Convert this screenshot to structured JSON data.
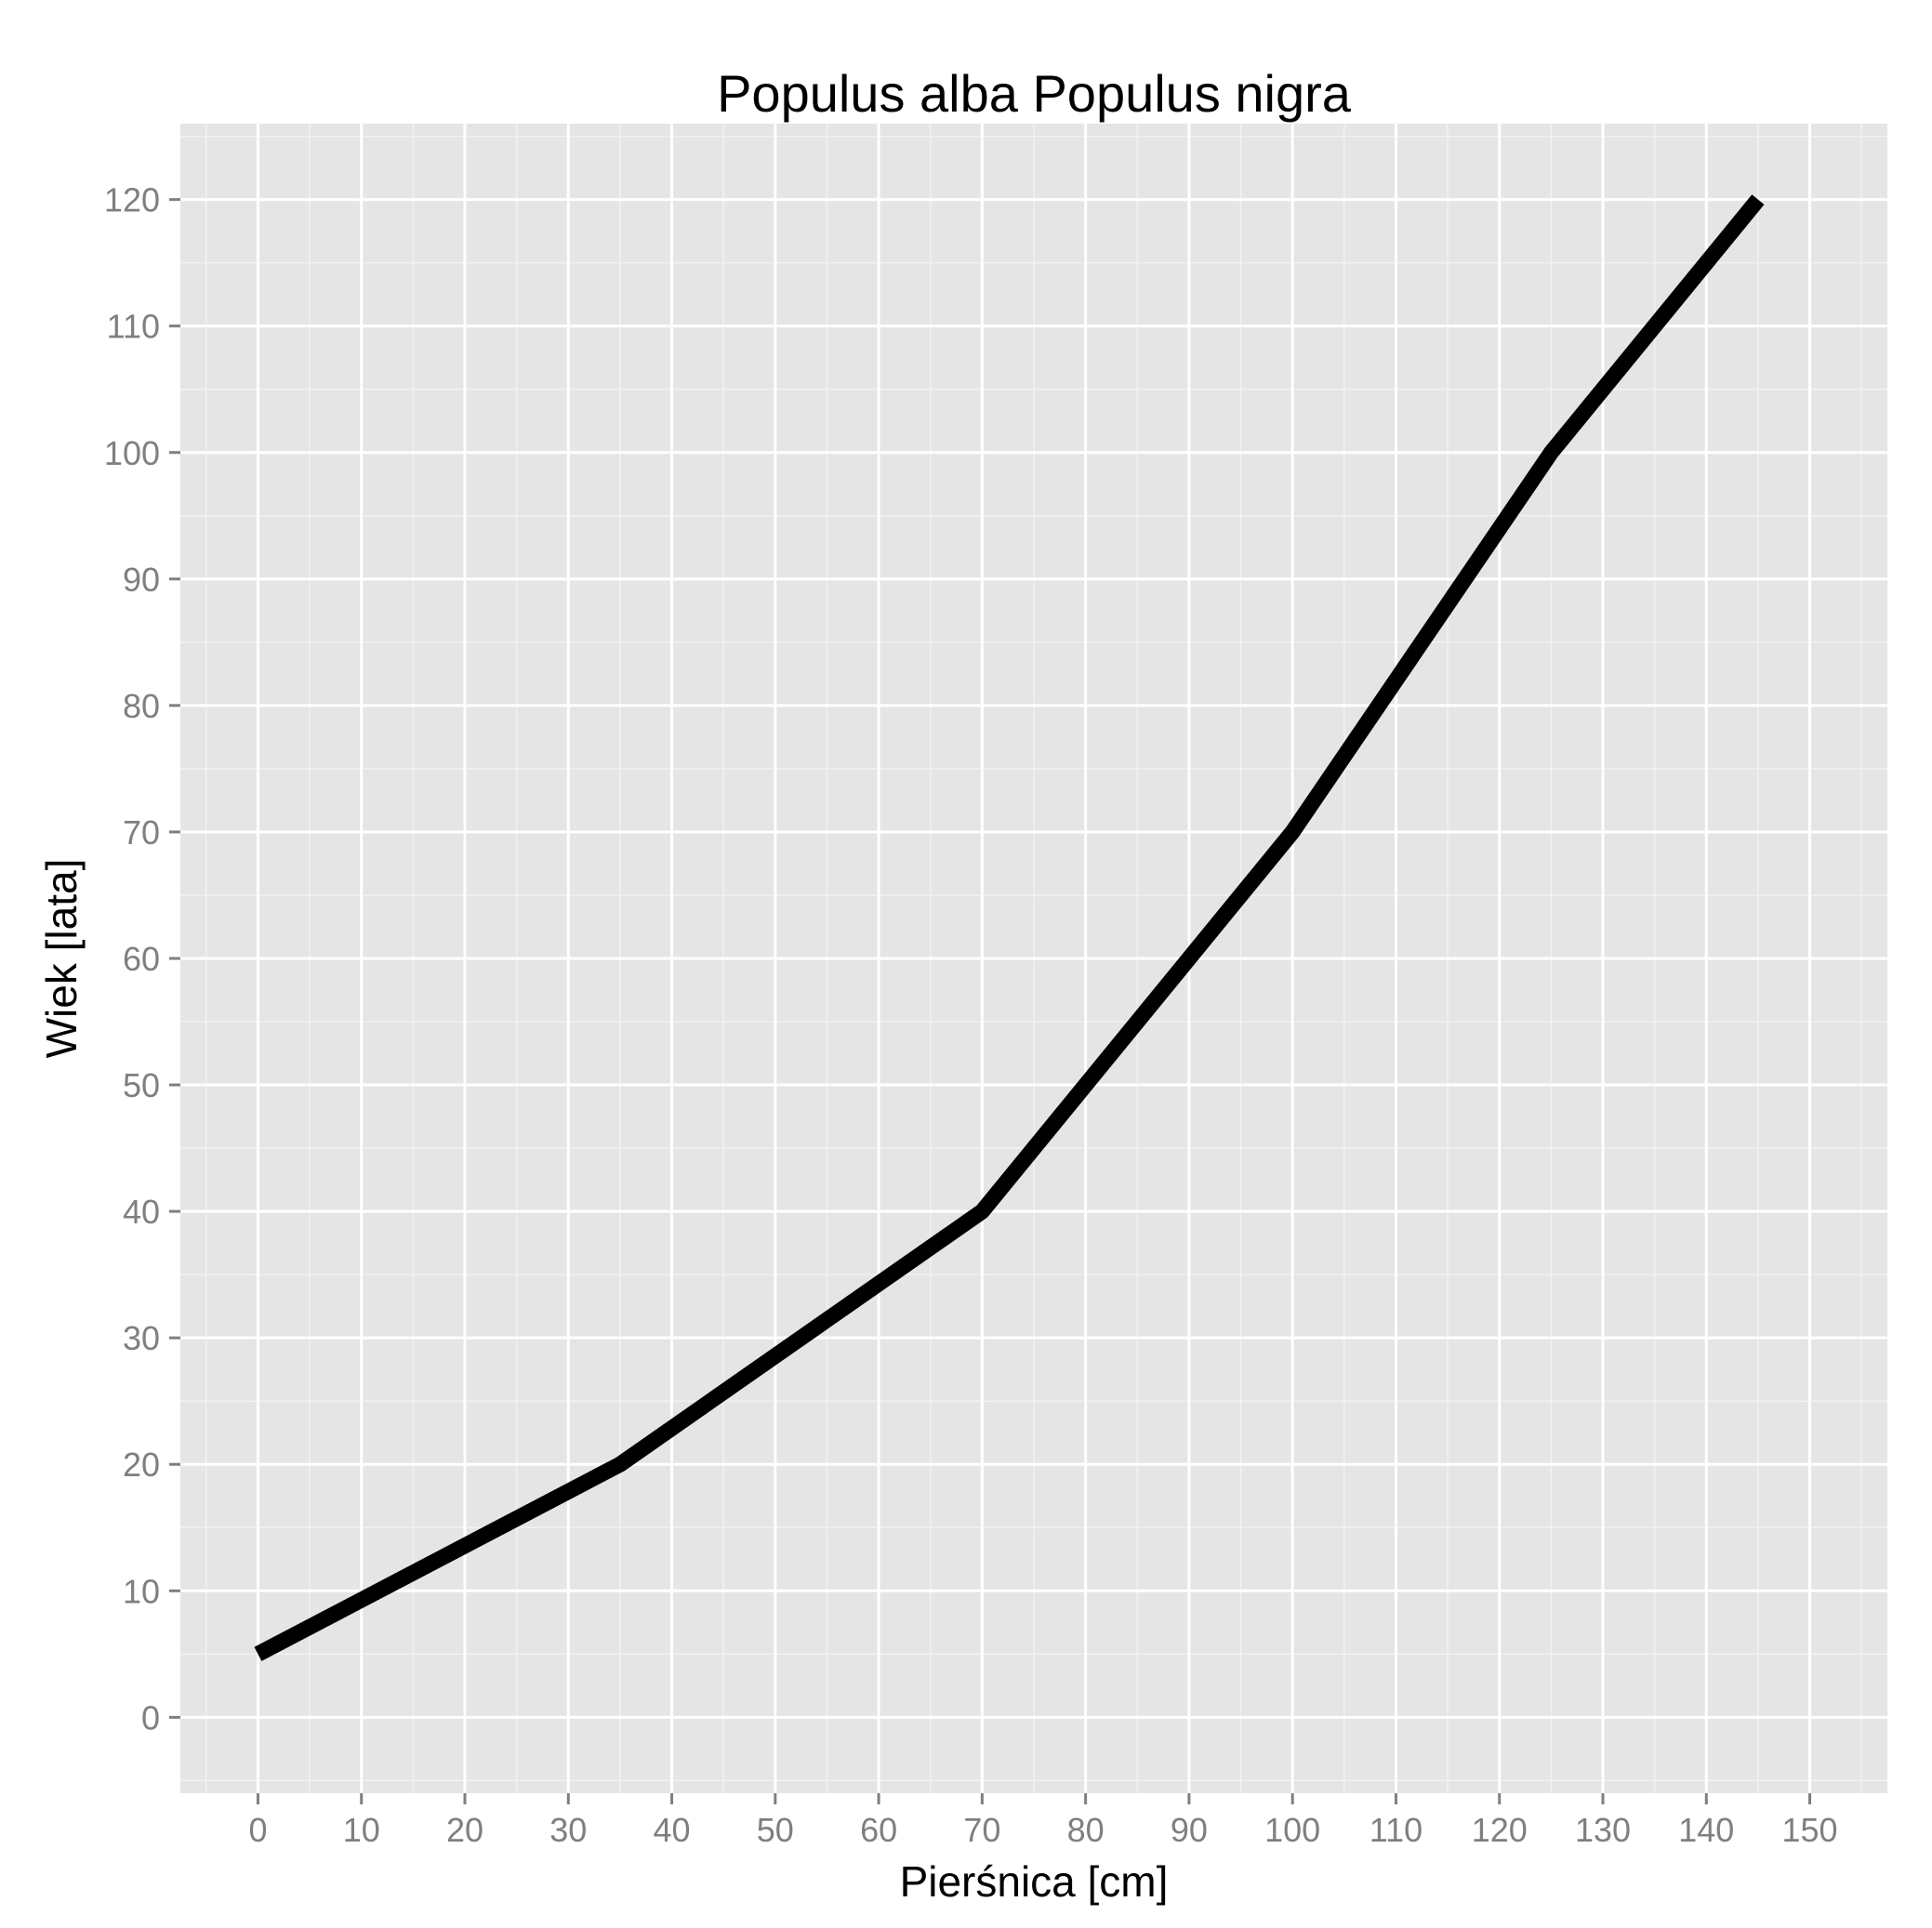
{
  "chart_data": {
    "type": "line",
    "title": "Populus alba Populus nigra",
    "xlabel": "Pierśnica [cm]",
    "ylabel": "Wiek [lata]",
    "xlim": [
      -7.5,
      157.5
    ],
    "ylim": [
      -6,
      126
    ],
    "x_ticks": [
      0,
      10,
      20,
      30,
      40,
      50,
      60,
      70,
      80,
      90,
      100,
      110,
      120,
      130,
      140,
      150
    ],
    "y_ticks": [
      0,
      10,
      20,
      30,
      40,
      50,
      60,
      70,
      80,
      90,
      100,
      110,
      120
    ],
    "grid": true,
    "colors": {
      "panel": "#e5e5e5",
      "grid": "#ffffff",
      "line": "#000000",
      "tick_text": "#7f7f7f"
    },
    "series": [
      {
        "x": [
          0,
          35,
          70,
          100,
          125,
          145
        ],
        "y": [
          5,
          20,
          40,
          70,
          100,
          120
        ]
      }
    ]
  }
}
